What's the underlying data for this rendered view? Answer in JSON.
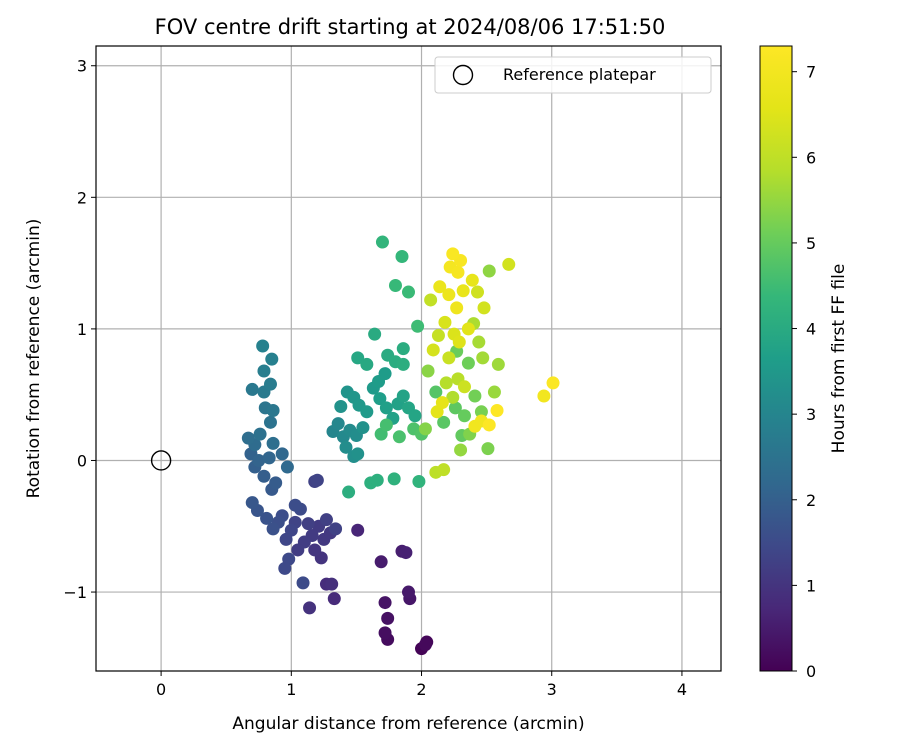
{
  "chart_data": {
    "type": "scatter",
    "title": "FOV centre drift starting at 2024/08/06 17:51:50",
    "xlabel": "Angular distance from reference (arcmin)",
    "ylabel": "Rotation from reference (arcmin)",
    "xlim": [
      -0.5,
      4.3
    ],
    "ylim": [
      -1.6,
      3.15
    ],
    "xticks": [
      0,
      1,
      2,
      3,
      4
    ],
    "xtick_labels": [
      "0",
      "1",
      "2",
      "3",
      "4"
    ],
    "yticks": [
      -1,
      0,
      1,
      2,
      3
    ],
    "ytick_labels": [
      "−1",
      "0",
      "1",
      "2",
      "3"
    ],
    "grid": true,
    "legend": {
      "placement": "top-right",
      "entries": [
        "Reference platepar"
      ]
    },
    "reference_point": {
      "x": 0,
      "y": 0,
      "marker": "open-circle"
    },
    "colorbar": {
      "label": "Hours from first FF file",
      "colormap": "viridis",
      "range": [
        0,
        7.3
      ],
      "ticks": [
        0,
        1,
        2,
        3,
        4,
        5,
        6,
        7
      ],
      "tick_labels": [
        "0",
        "1",
        "2",
        "3",
        "4",
        "5",
        "6",
        "7"
      ]
    },
    "points": [
      {
        "x": 2.0,
        "y": -1.43,
        "c": 0.05
      },
      {
        "x": 2.04,
        "y": -1.38,
        "c": 0.1
      },
      {
        "x": 2.03,
        "y": -1.4,
        "c": 0.15
      },
      {
        "x": 1.74,
        "y": -1.36,
        "c": 0.2
      },
      {
        "x": 1.72,
        "y": -1.31,
        "c": 0.25
      },
      {
        "x": 1.74,
        "y": -1.2,
        "c": 0.3
      },
      {
        "x": 1.72,
        "y": -1.08,
        "c": 0.35
      },
      {
        "x": 1.91,
        "y": -1.05,
        "c": 0.4
      },
      {
        "x": 1.9,
        "y": -1.0,
        "c": 0.45
      },
      {
        "x": 1.69,
        "y": -0.77,
        "c": 0.5
      },
      {
        "x": 1.85,
        "y": -0.69,
        "c": 0.55
      },
      {
        "x": 1.88,
        "y": -0.7,
        "c": 0.6
      },
      {
        "x": 1.51,
        "y": -0.53,
        "c": 0.7
      },
      {
        "x": 1.33,
        "y": -1.05,
        "c": 0.8
      },
      {
        "x": 1.27,
        "y": -0.94,
        "c": 0.85
      },
      {
        "x": 1.31,
        "y": -0.94,
        "c": 0.9
      },
      {
        "x": 1.14,
        "y": -1.12,
        "c": 0.95
      },
      {
        "x": 1.23,
        "y": -0.74,
        "c": 1.0
      },
      {
        "x": 1.18,
        "y": -0.68,
        "c": 1.05
      },
      {
        "x": 1.25,
        "y": -0.6,
        "c": 1.1
      },
      {
        "x": 1.3,
        "y": -0.55,
        "c": 1.1
      },
      {
        "x": 1.21,
        "y": -0.5,
        "c": 1.15
      },
      {
        "x": 1.16,
        "y": -0.57,
        "c": 1.15
      },
      {
        "x": 1.1,
        "y": -0.62,
        "c": 1.2
      },
      {
        "x": 1.05,
        "y": -0.68,
        "c": 1.2
      },
      {
        "x": 1.13,
        "y": -0.48,
        "c": 1.25
      },
      {
        "x": 1.27,
        "y": -0.45,
        "c": 1.25
      },
      {
        "x": 1.34,
        "y": -0.52,
        "c": 1.3
      },
      {
        "x": 1.18,
        "y": -0.16,
        "c": 1.3
      },
      {
        "x": 1.2,
        "y": -0.15,
        "c": 1.35
      },
      {
        "x": 1.03,
        "y": -0.47,
        "c": 1.35
      },
      {
        "x": 1.0,
        "y": -0.53,
        "c": 1.4
      },
      {
        "x": 0.96,
        "y": -0.6,
        "c": 1.4
      },
      {
        "x": 0.98,
        "y": -0.75,
        "c": 1.45
      },
      {
        "x": 0.95,
        "y": -0.82,
        "c": 1.45
      },
      {
        "x": 1.09,
        "y": -0.93,
        "c": 1.5
      },
      {
        "x": 1.07,
        "y": -0.37,
        "c": 1.5
      },
      {
        "x": 1.03,
        "y": -0.34,
        "c": 1.55
      },
      {
        "x": 0.93,
        "y": -0.42,
        "c": 1.55
      },
      {
        "x": 0.9,
        "y": -0.47,
        "c": 1.6
      },
      {
        "x": 0.86,
        "y": -0.52,
        "c": 1.65
      },
      {
        "x": 0.81,
        "y": -0.44,
        "c": 1.7
      },
      {
        "x": 0.74,
        "y": -0.38,
        "c": 1.75
      },
      {
        "x": 0.7,
        "y": -0.32,
        "c": 1.8
      },
      {
        "x": 0.85,
        "y": -0.22,
        "c": 1.85
      },
      {
        "x": 0.88,
        "y": -0.17,
        "c": 1.9
      },
      {
        "x": 0.79,
        "y": -0.12,
        "c": 1.95
      },
      {
        "x": 0.72,
        "y": -0.05,
        "c": 2.0
      },
      {
        "x": 0.69,
        "y": 0.05,
        "c": 2.05
      },
      {
        "x": 0.75,
        "y": 0.0,
        "c": 2.1
      },
      {
        "x": 0.83,
        "y": 0.02,
        "c": 2.15
      },
      {
        "x": 0.93,
        "y": 0.05,
        "c": 2.2
      },
      {
        "x": 0.97,
        "y": -0.05,
        "c": 2.25
      },
      {
        "x": 0.72,
        "y": 0.12,
        "c": 2.3
      },
      {
        "x": 0.67,
        "y": 0.17,
        "c": 2.35
      },
      {
        "x": 0.86,
        "y": 0.13,
        "c": 2.4
      },
      {
        "x": 0.76,
        "y": 0.2,
        "c": 2.45
      },
      {
        "x": 0.84,
        "y": 0.29,
        "c": 2.5
      },
      {
        "x": 0.8,
        "y": 0.4,
        "c": 2.55
      },
      {
        "x": 0.86,
        "y": 0.38,
        "c": 2.6
      },
      {
        "x": 0.7,
        "y": 0.54,
        "c": 2.65
      },
      {
        "x": 0.79,
        "y": 0.52,
        "c": 2.7
      },
      {
        "x": 0.84,
        "y": 0.58,
        "c": 2.75
      },
      {
        "x": 0.79,
        "y": 0.68,
        "c": 2.8
      },
      {
        "x": 0.85,
        "y": 0.77,
        "c": 2.85
      },
      {
        "x": 0.78,
        "y": 0.87,
        "c": 2.9
      },
      {
        "x": 1.32,
        "y": 0.22,
        "c": 3.0
      },
      {
        "x": 1.36,
        "y": 0.28,
        "c": 3.05
      },
      {
        "x": 1.4,
        "y": 0.18,
        "c": 3.1
      },
      {
        "x": 1.45,
        "y": 0.23,
        "c": 3.15
      },
      {
        "x": 1.5,
        "y": 0.19,
        "c": 3.2
      },
      {
        "x": 1.42,
        "y": 0.1,
        "c": 3.2
      },
      {
        "x": 1.48,
        "y": 0.03,
        "c": 3.25
      },
      {
        "x": 1.51,
        "y": 0.05,
        "c": 3.3
      },
      {
        "x": 1.55,
        "y": 0.25,
        "c": 3.3
      },
      {
        "x": 1.38,
        "y": 0.41,
        "c": 3.35
      },
      {
        "x": 1.43,
        "y": 0.52,
        "c": 3.4
      },
      {
        "x": 1.48,
        "y": 0.48,
        "c": 3.45
      },
      {
        "x": 1.52,
        "y": 0.42,
        "c": 3.5
      },
      {
        "x": 1.58,
        "y": 0.37,
        "c": 3.55
      },
      {
        "x": 1.63,
        "y": 0.55,
        "c": 3.55
      },
      {
        "x": 1.67,
        "y": 0.6,
        "c": 3.6
      },
      {
        "x": 1.72,
        "y": 0.66,
        "c": 3.6
      },
      {
        "x": 1.68,
        "y": 0.47,
        "c": 3.65
      },
      {
        "x": 1.73,
        "y": 0.4,
        "c": 3.7
      },
      {
        "x": 1.78,
        "y": 0.32,
        "c": 3.75
      },
      {
        "x": 1.82,
        "y": 0.43,
        "c": 3.75
      },
      {
        "x": 1.86,
        "y": 0.49,
        "c": 3.8
      },
      {
        "x": 1.9,
        "y": 0.4,
        "c": 3.85
      },
      {
        "x": 1.95,
        "y": 0.34,
        "c": 3.85
      },
      {
        "x": 1.51,
        "y": 0.78,
        "c": 3.9
      },
      {
        "x": 1.58,
        "y": 0.73,
        "c": 3.95
      },
      {
        "x": 1.64,
        "y": 0.96,
        "c": 4.0
      },
      {
        "x": 1.74,
        "y": 0.8,
        "c": 4.0
      },
      {
        "x": 1.8,
        "y": 0.75,
        "c": 4.05
      },
      {
        "x": 1.86,
        "y": 0.85,
        "c": 4.05
      },
      {
        "x": 1.86,
        "y": 0.73,
        "c": 4.1
      },
      {
        "x": 1.44,
        "y": -0.24,
        "c": 4.1
      },
      {
        "x": 1.61,
        "y": -0.17,
        "c": 4.15
      },
      {
        "x": 1.66,
        "y": -0.15,
        "c": 4.15
      },
      {
        "x": 1.79,
        "y": -0.14,
        "c": 4.2
      },
      {
        "x": 1.98,
        "y": -0.16,
        "c": 4.25
      },
      {
        "x": 1.7,
        "y": 1.66,
        "c": 4.3
      },
      {
        "x": 1.85,
        "y": 1.55,
        "c": 4.35
      },
      {
        "x": 1.8,
        "y": 1.33,
        "c": 4.4
      },
      {
        "x": 1.9,
        "y": 1.28,
        "c": 4.45
      },
      {
        "x": 1.97,
        "y": 1.02,
        "c": 4.5
      },
      {
        "x": 1.69,
        "y": 0.2,
        "c": 4.55
      },
      {
        "x": 1.73,
        "y": 0.27,
        "c": 4.6
      },
      {
        "x": 1.83,
        "y": 0.18,
        "c": 4.65
      },
      {
        "x": 1.94,
        "y": 0.24,
        "c": 4.7
      },
      {
        "x": 2.0,
        "y": 0.2,
        "c": 4.75
      },
      {
        "x": 2.11,
        "y": 0.52,
        "c": 4.8
      },
      {
        "x": 2.17,
        "y": 0.29,
        "c": 4.85
      },
      {
        "x": 2.26,
        "y": 0.4,
        "c": 4.9
      },
      {
        "x": 2.31,
        "y": 0.19,
        "c": 4.95
      },
      {
        "x": 2.33,
        "y": 0.34,
        "c": 5.0
      },
      {
        "x": 2.27,
        "y": 0.83,
        "c": 5.05
      },
      {
        "x": 2.36,
        "y": 0.74,
        "c": 5.1
      },
      {
        "x": 2.41,
        "y": 0.49,
        "c": 5.15
      },
      {
        "x": 2.46,
        "y": 0.37,
        "c": 5.2
      },
      {
        "x": 2.51,
        "y": 0.09,
        "c": 5.25
      },
      {
        "x": 2.37,
        "y": 0.2,
        "c": 5.3
      },
      {
        "x": 2.03,
        "y": 0.24,
        "c": 5.35
      },
      {
        "x": 2.05,
        "y": 0.68,
        "c": 5.4
      },
      {
        "x": 2.52,
        "y": 1.44,
        "c": 5.45
      },
      {
        "x": 2.3,
        "y": 0.08,
        "c": 5.5
      },
      {
        "x": 2.56,
        "y": 0.52,
        "c": 5.55
      },
      {
        "x": 2.59,
        "y": 0.73,
        "c": 5.6
      },
      {
        "x": 2.47,
        "y": 0.78,
        "c": 5.65
      },
      {
        "x": 2.44,
        "y": 0.9,
        "c": 5.7
      },
      {
        "x": 2.4,
        "y": 1.04,
        "c": 5.75
      },
      {
        "x": 2.24,
        "y": 0.48,
        "c": 5.8
      },
      {
        "x": 2.19,
        "y": 0.59,
        "c": 5.85
      },
      {
        "x": 2.28,
        "y": 0.62,
        "c": 5.9
      },
      {
        "x": 2.11,
        "y": -0.09,
        "c": 5.95
      },
      {
        "x": 2.17,
        "y": -0.07,
        "c": 6.0
      },
      {
        "x": 2.07,
        "y": 1.22,
        "c": 6.05
      },
      {
        "x": 2.13,
        "y": 0.95,
        "c": 6.1
      },
      {
        "x": 2.21,
        "y": 0.78,
        "c": 6.15
      },
      {
        "x": 2.33,
        "y": 0.56,
        "c": 6.2
      },
      {
        "x": 2.43,
        "y": 1.28,
        "c": 6.25
      },
      {
        "x": 2.48,
        "y": 1.16,
        "c": 6.3
      },
      {
        "x": 2.67,
        "y": 1.49,
        "c": 6.3
      },
      {
        "x": 2.09,
        "y": 0.84,
        "c": 6.35
      },
      {
        "x": 2.18,
        "y": 1.05,
        "c": 6.4
      },
      {
        "x": 2.25,
        "y": 0.96,
        "c": 6.45
      },
      {
        "x": 2.29,
        "y": 0.9,
        "c": 6.5
      },
      {
        "x": 2.36,
        "y": 1.0,
        "c": 6.55
      },
      {
        "x": 2.12,
        "y": 0.37,
        "c": 6.6
      },
      {
        "x": 2.16,
        "y": 0.44,
        "c": 6.65
      },
      {
        "x": 2.39,
        "y": 1.37,
        "c": 6.7
      },
      {
        "x": 2.32,
        "y": 1.29,
        "c": 6.75
      },
      {
        "x": 2.14,
        "y": 1.32,
        "c": 6.8
      },
      {
        "x": 2.21,
        "y": 1.26,
        "c": 6.85
      },
      {
        "x": 2.27,
        "y": 1.16,
        "c": 6.9
      },
      {
        "x": 2.41,
        "y": 0.26,
        "c": 6.95
      },
      {
        "x": 2.46,
        "y": 0.3,
        "c": 6.95
      },
      {
        "x": 2.94,
        "y": 0.49,
        "c": 7.0
      },
      {
        "x": 2.22,
        "y": 1.47,
        "c": 7.05
      },
      {
        "x": 2.28,
        "y": 1.43,
        "c": 7.1
      },
      {
        "x": 2.3,
        "y": 1.52,
        "c": 7.15
      },
      {
        "x": 2.24,
        "y": 1.57,
        "c": 7.2
      },
      {
        "x": 3.01,
        "y": 0.59,
        "c": 7.25
      },
      {
        "x": 2.52,
        "y": 0.27,
        "c": 7.28
      },
      {
        "x": 2.58,
        "y": 0.38,
        "c": 7.3
      }
    ]
  }
}
